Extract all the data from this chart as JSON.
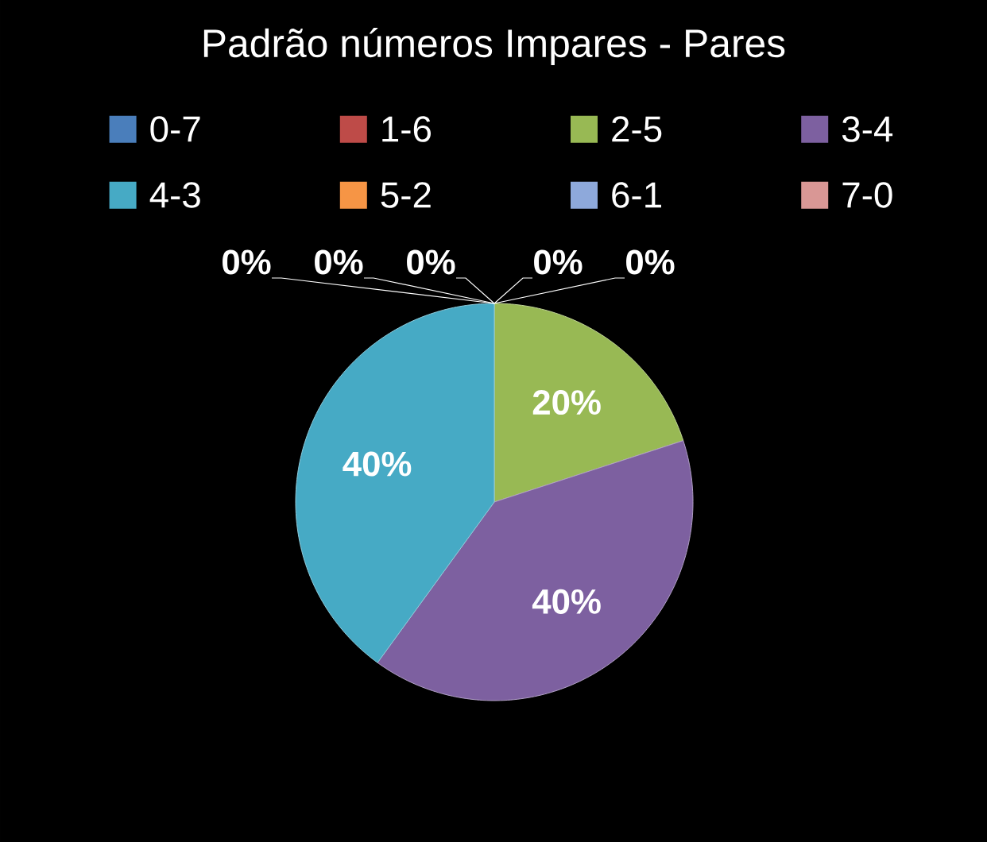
{
  "chart_data": {
    "type": "pie",
    "title": "Padrão números Impares - Pares",
    "categories": [
      "0-7",
      "1-6",
      "2-5",
      "3-4",
      "4-3",
      "5-2",
      "6-1",
      "7-0"
    ],
    "values": [
      0,
      0,
      20,
      40,
      40,
      0,
      0,
      0
    ],
    "colors": [
      "#4a7ebb",
      "#be4b48",
      "#98b954",
      "#7d60a0",
      "#46aac5",
      "#f69545",
      "#8ea9db",
      "#d99795"
    ],
    "value_labels": [
      "0%",
      "0%",
      "20%",
      "40%",
      "40%",
      "0%",
      "0%",
      "0%"
    ],
    "legend": "top"
  }
}
